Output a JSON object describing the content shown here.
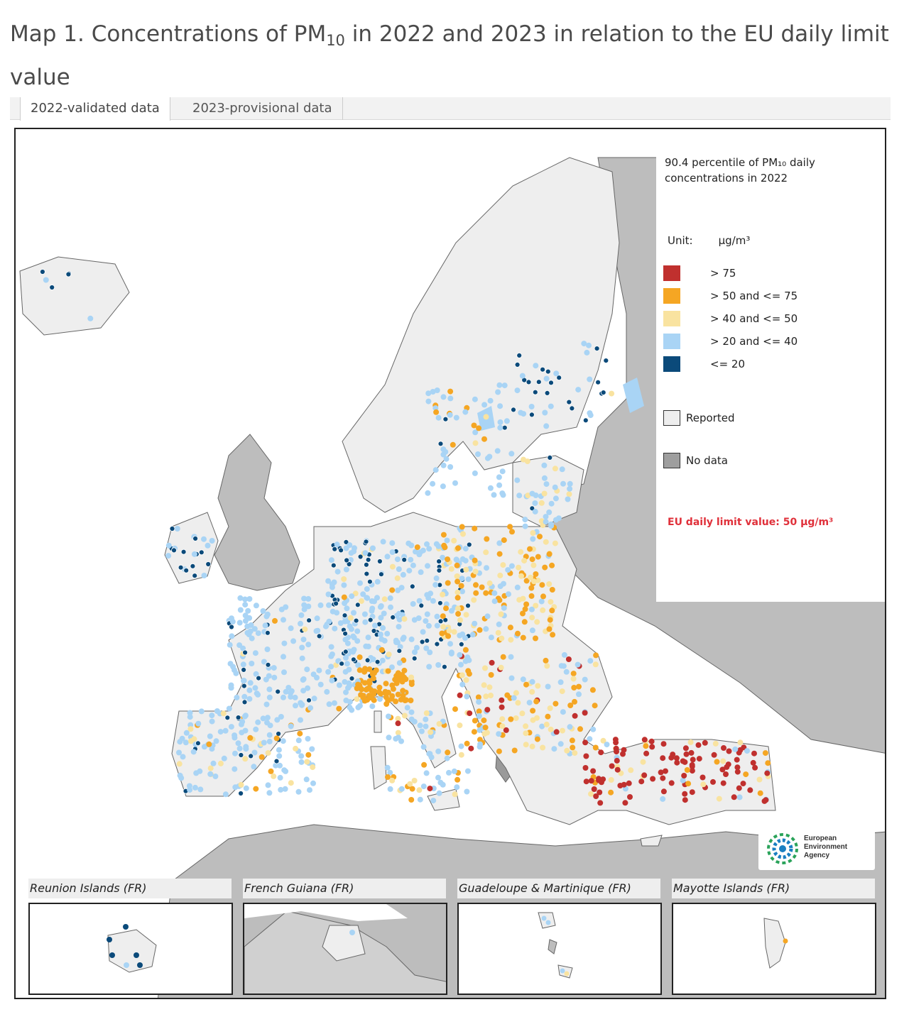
{
  "page": {
    "title_prefix": "Map 1. Concentrations of PM",
    "title_sub": "10",
    "title_suffix": " in 2022 and 2023 in relation to the EU daily limit value"
  },
  "tabs": [
    {
      "label": "2022-validated data",
      "active": true
    },
    {
      "label": "2023-provisional data",
      "active": false
    }
  ],
  "legend": {
    "title": "90.4 percentile of PM₁₀ daily concentrations in 2022",
    "unit_label": "Unit:",
    "unit_value": "µg/m³",
    "classes": [
      {
        "label": "> 75",
        "color": "#c0302e"
      },
      {
        "label": "> 50 and <= 75",
        "color": "#f5a623"
      },
      {
        "label": "> 40 and <= 50",
        "color": "#f9e3a0"
      },
      {
        "label": "> 20 and <= 40",
        "color": "#a9d4f5"
      },
      {
        "label": "<= 20",
        "color": "#0b4a7a"
      }
    ],
    "reported": "Reported",
    "no_data": "No data",
    "limit_note": "EU daily limit value: 50 µg/m³"
  },
  "logo": {
    "line1": "European",
    "line2": "Environment",
    "line3": "Agency"
  },
  "insets": [
    {
      "label": "Reunion Islands (FR)"
    },
    {
      "label": "French Guiana (FR)"
    },
    {
      "label": "Guadeloupe & Martinique (FR)"
    },
    {
      "label": "Mayotte Islands (FR)"
    }
  ],
  "colors": {
    "sea": "#ffffff",
    "reported_land": "#eeeeee",
    "no_data_land": "#bdbdbd",
    "country_border": "#5a5a5a"
  }
}
